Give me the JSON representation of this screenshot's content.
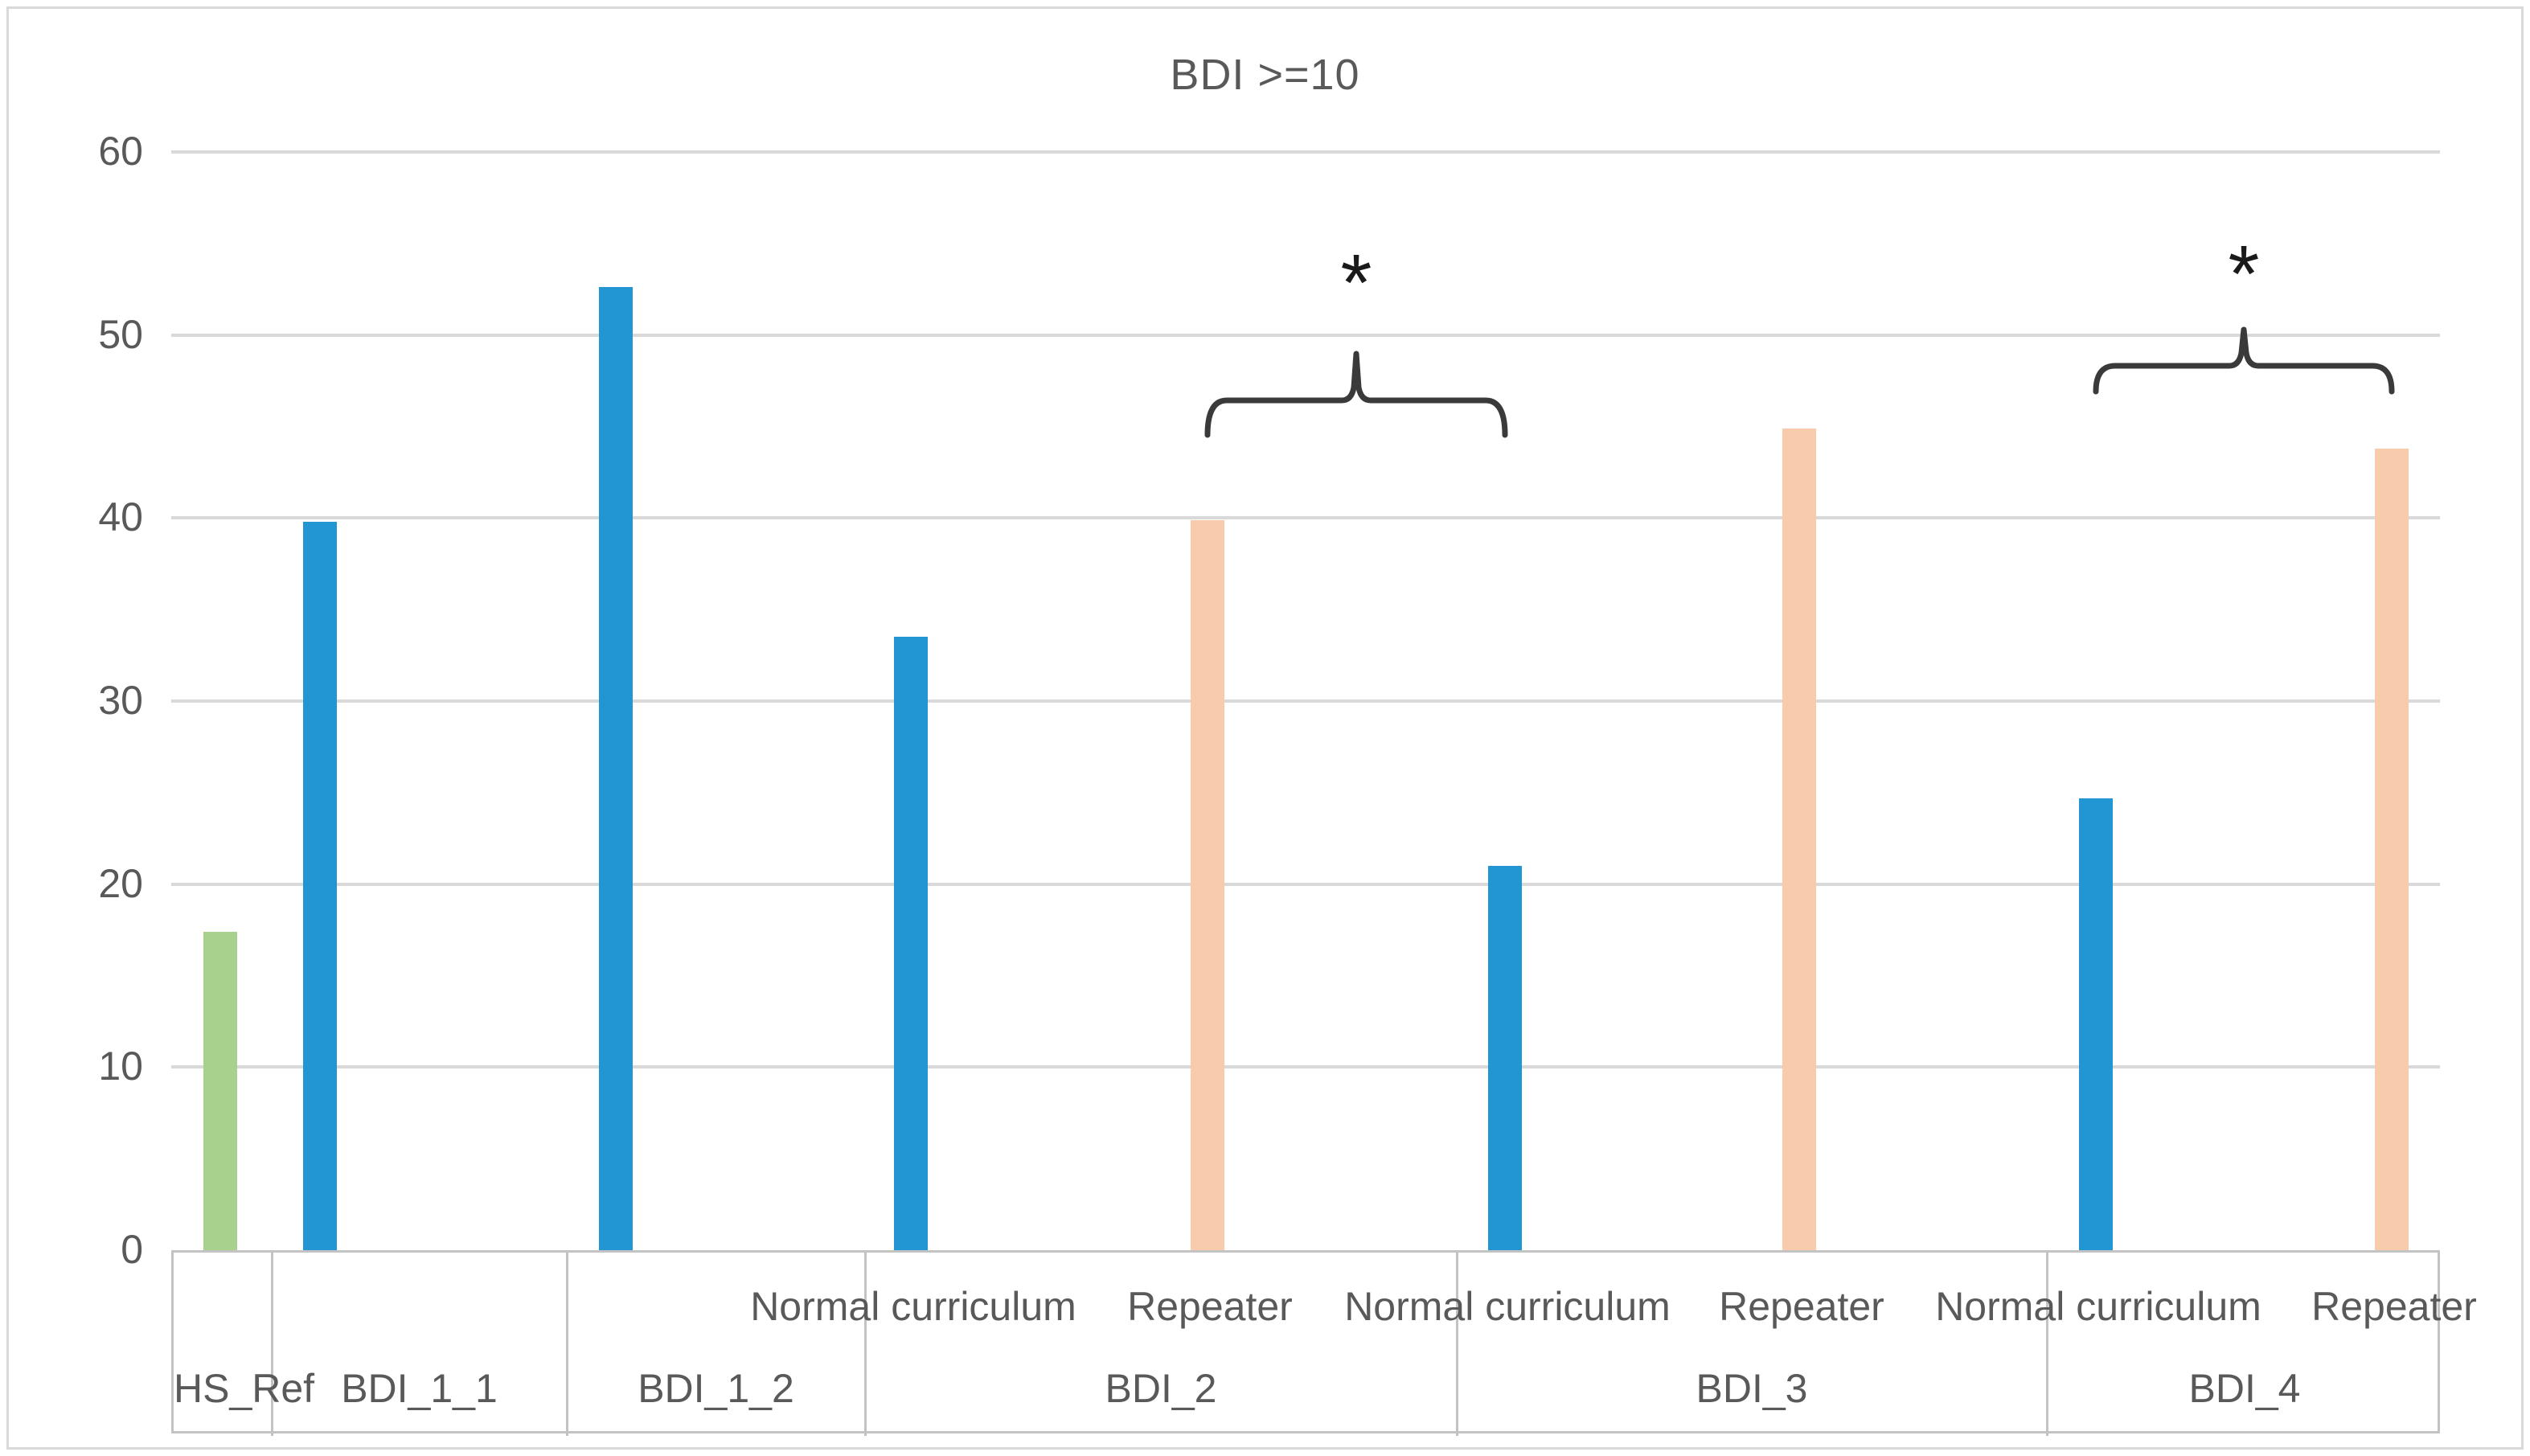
{
  "chart_data": {
    "type": "bar",
    "title": "BDI >=10",
    "xlabel": "",
    "ylabel": "",
    "ylim": [
      0,
      60
    ],
    "yticks": [
      0,
      10,
      20,
      30,
      40,
      50,
      60
    ],
    "grid": true,
    "legend_position": "none",
    "groups": [
      "HS_Ref",
      "BDI_1_1",
      "BDI_1_2",
      "BDI_2",
      "BDI_3",
      "BDI_4"
    ],
    "bars": [
      {
        "group": "HS_Ref",
        "subcategory": "",
        "value": 17.4,
        "color_key": "green"
      },
      {
        "group": "BDI_1_1",
        "subcategory": "",
        "value": 39.8,
        "color_key": "blue"
      },
      {
        "group": "BDI_1_2",
        "subcategory": "",
        "value": 52.6,
        "color_key": "blue"
      },
      {
        "group": "BDI_2",
        "subcategory": "Normal curriculum",
        "value": 33.5,
        "color_key": "blue"
      },
      {
        "group": "BDI_2",
        "subcategory": "Repeater",
        "value": 39.9,
        "color_key": "orange"
      },
      {
        "group": "BDI_3",
        "subcategory": "Normal curriculum",
        "value": 21.0,
        "color_key": "blue"
      },
      {
        "group": "BDI_3",
        "subcategory": "Repeater",
        "value": 44.9,
        "color_key": "orange"
      },
      {
        "group": "BDI_4",
        "subcategory": "Normal curriculum",
        "value": 24.7,
        "color_key": "blue"
      },
      {
        "group": "BDI_4",
        "subcategory": "Repeater",
        "value": 43.8,
        "color_key": "orange"
      }
    ],
    "annotations": [
      {
        "text": "*",
        "from_bar": 4,
        "to_bar": 5
      },
      {
        "text": "*",
        "from_bar": 7,
        "to_bar": 8
      }
    ],
    "colors": {
      "blue": "#2196D3",
      "orange": "#F8CBAD",
      "green": "#A9D18E",
      "gridline": "#D9D9D9",
      "text": "#595959",
      "brace": "#3a3a3a",
      "asterisk": "#1a1a1a"
    }
  }
}
